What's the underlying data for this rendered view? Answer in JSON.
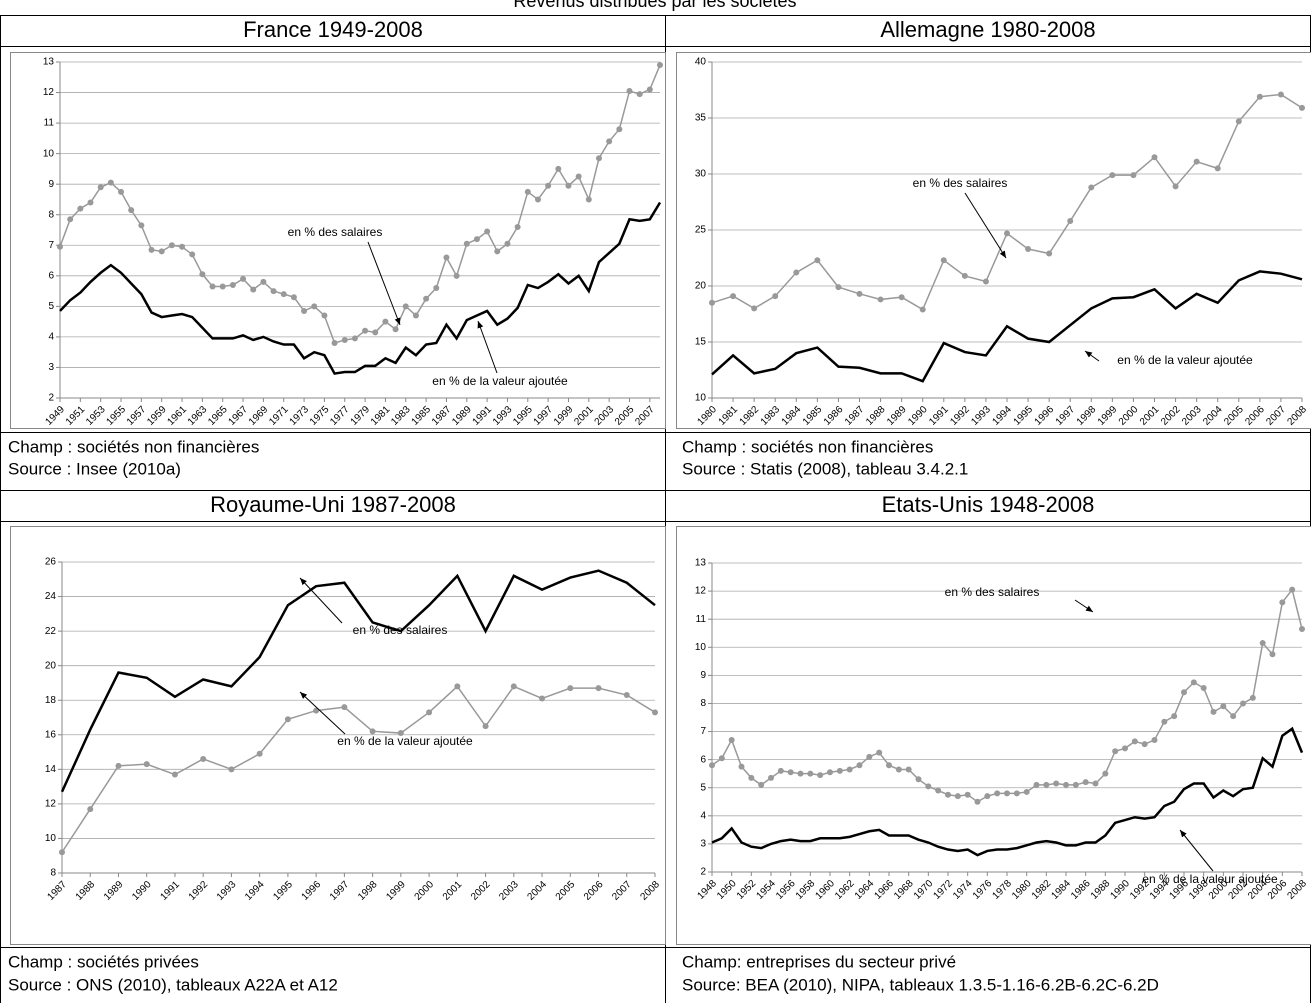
{
  "title": "Revenus distribués par les sociétés",
  "chart_data": [
    {
      "type": "line",
      "title": "France 1949-2008",
      "x": [
        1949,
        1950,
        1951,
        1952,
        1953,
        1954,
        1955,
        1956,
        1957,
        1958,
        1959,
        1960,
        1961,
        1962,
        1963,
        1964,
        1965,
        1966,
        1967,
        1968,
        1969,
        1970,
        1971,
        1972,
        1973,
        1974,
        1975,
        1976,
        1977,
        1978,
        1979,
        1980,
        1981,
        1982,
        1983,
        1984,
        1985,
        1986,
        1987,
        1988,
        1989,
        1990,
        1991,
        1992,
        1993,
        1994,
        1995,
        1996,
        1997,
        1998,
        1999,
        2000,
        2001,
        2002,
        2003,
        2004,
        2005,
        2006,
        2007,
        2008
      ],
      "xlim": [
        1949,
        2008
      ],
      "xticks": [
        1949,
        1951,
        1953,
        1955,
        1957,
        1959,
        1961,
        1963,
        1965,
        1967,
        1969,
        1971,
        1973,
        1975,
        1977,
        1979,
        1981,
        1983,
        1985,
        1987,
        1989,
        1991,
        1993,
        1995,
        1997,
        1999,
        2001,
        2003,
        2005,
        2007
      ],
      "ylim": [
        2,
        13
      ],
      "yticks": [
        2,
        3,
        4,
        5,
        6,
        7,
        8,
        9,
        10,
        11,
        12,
        13
      ],
      "grid": true,
      "series": [
        {
          "name": "en % des salaires",
          "color": "#999999",
          "marker": true,
          "values": [
            6.95,
            7.85,
            8.2,
            8.4,
            8.9,
            9.05,
            8.75,
            8.15,
            7.65,
            6.85,
            6.8,
            7.0,
            6.95,
            6.7,
            6.05,
            5.65,
            5.65,
            5.7,
            5.9,
            5.55,
            5.8,
            5.5,
            5.4,
            5.3,
            4.85,
            5.0,
            4.7,
            3.8,
            3.9,
            3.95,
            4.2,
            4.15,
            4.5,
            4.25,
            5.0,
            4.7,
            5.25,
            5.6,
            6.6,
            6.0,
            7.05,
            7.2,
            7.45,
            6.8,
            7.05,
            7.6,
            8.75,
            8.5,
            8.95,
            9.5,
            8.95,
            9.25,
            8.5,
            9.85,
            10.4,
            10.8,
            12.05,
            11.95,
            12.1,
            12.9
          ]
        },
        {
          "name": "en % de la valeur ajoutée",
          "color": "#000000",
          "marker": false,
          "values": [
            4.85,
            5.2,
            5.45,
            5.8,
            6.1,
            6.35,
            6.1,
            5.75,
            5.4,
            4.8,
            4.65,
            4.7,
            4.75,
            4.65,
            4.3,
            3.95,
            3.95,
            3.95,
            4.05,
            3.9,
            4.0,
            3.85,
            3.75,
            3.75,
            3.3,
            3.5,
            3.4,
            2.8,
            2.85,
            2.85,
            3.05,
            3.05,
            3.3,
            3.15,
            3.65,
            3.4,
            3.75,
            3.8,
            4.4,
            3.95,
            4.55,
            4.7,
            4.85,
            4.4,
            4.6,
            4.95,
            5.7,
            5.6,
            5.8,
            6.05,
            5.75,
            6.0,
            5.5,
            6.45,
            6.75,
            7.05,
            7.85,
            7.8,
            7.85,
            8.4
          ]
        }
      ],
      "annotations": [
        "en % des salaires",
        "en % de la valeur ajoutée"
      ],
      "notes": [
        "Champ : sociétés non financières",
        "Source : Insee (2010a)"
      ]
    },
    {
      "type": "line",
      "title": "Allemagne 1980-2008",
      "x": [
        1980,
        1981,
        1982,
        1983,
        1984,
        1985,
        1986,
        1987,
        1988,
        1989,
        1990,
        1991,
        1992,
        1993,
        1994,
        1995,
        1996,
        1997,
        1998,
        1999,
        2000,
        2001,
        2002,
        2003,
        2004,
        2005,
        2006,
        2007,
        2008
      ],
      "xlim": [
        1980,
        2008
      ],
      "xticks": [
        1980,
        1981,
        1982,
        1983,
        1984,
        1985,
        1986,
        1987,
        1988,
        1989,
        1990,
        1991,
        1992,
        1993,
        1994,
        1995,
        1996,
        1997,
        1998,
        1999,
        2000,
        2001,
        2002,
        2003,
        2004,
        2005,
        2006,
        2007,
        2008
      ],
      "ylim": [
        10,
        40
      ],
      "yticks": [
        10,
        15,
        20,
        25,
        30,
        35,
        40
      ],
      "grid": true,
      "series": [
        {
          "name": "en % des salaires",
          "color": "#999999",
          "marker": true,
          "values": [
            18.5,
            19.1,
            18.0,
            19.1,
            21.2,
            22.3,
            19.9,
            19.3,
            18.8,
            19.0,
            17.9,
            22.3,
            20.9,
            20.4,
            24.7,
            23.3,
            22.9,
            25.8,
            28.8,
            29.9,
            29.9,
            31.5,
            28.9,
            31.1,
            30.5,
            34.7,
            36.9,
            37.1,
            35.9
          ]
        },
        {
          "name": "en % de la valeur ajoutée",
          "color": "#000000",
          "marker": false,
          "values": [
            12.1,
            13.8,
            12.2,
            12.6,
            14.0,
            14.5,
            12.8,
            12.7,
            12.2,
            12.2,
            11.5,
            14.9,
            14.1,
            13.8,
            16.4,
            15.3,
            15.0,
            16.5,
            18.0,
            18.9,
            19.0,
            19.7,
            18.0,
            19.3,
            18.5,
            20.5,
            21.3,
            21.1,
            20.6
          ]
        }
      ],
      "annotations": [
        "en % des salaires",
        "en % de la valeur ajoutée"
      ],
      "notes": [
        "Champ : sociétés non financières",
        "Source : Statis (2008), tableau 3.4.2.1"
      ]
    },
    {
      "type": "line",
      "title": "Royaume-Uni 1987-2008",
      "x": [
        1987,
        1988,
        1989,
        1990,
        1991,
        1992,
        1993,
        1994,
        1995,
        1996,
        1997,
        1998,
        1999,
        2000,
        2001,
        2002,
        2003,
        2004,
        2005,
        2006,
        2007,
        2008
      ],
      "xlim": [
        1987,
        2008
      ],
      "xticks": [
        1987,
        1988,
        1989,
        1990,
        1991,
        1992,
        1993,
        1994,
        1995,
        1996,
        1997,
        1998,
        1999,
        2000,
        2001,
        2002,
        2003,
        2004,
        2005,
        2006,
        2007,
        2008
      ],
      "ylim": [
        8,
        26
      ],
      "yticks": [
        8,
        10,
        12,
        14,
        16,
        18,
        20,
        22,
        24,
        26
      ],
      "grid": true,
      "series": [
        {
          "name": "en % des salaires",
          "color": "#000000",
          "marker": false,
          "values": [
            12.7,
            16.3,
            19.6,
            19.3,
            18.2,
            19.2,
            18.8,
            20.5,
            23.5,
            24.6,
            24.8,
            22.5,
            22.0,
            23.5,
            25.2,
            22.0,
            25.2,
            24.4,
            25.1,
            25.5,
            24.8,
            23.5
          ]
        },
        {
          "name": "en % de la valeur ajoutée",
          "color": "#999999",
          "marker": true,
          "values": [
            9.2,
            11.7,
            14.2,
            14.3,
            13.7,
            14.6,
            14.0,
            14.9,
            16.9,
            17.4,
            17.6,
            16.2,
            16.1,
            17.3,
            18.8,
            16.5,
            18.8,
            18.1,
            18.7,
            18.7,
            18.3,
            17.3
          ]
        }
      ],
      "annotations": [
        "en % des salaires",
        "en % de la valeur ajoutée"
      ],
      "notes": [
        "Champ : sociétés privées",
        "Source : ONS (2010), tableaux A22A et A12"
      ]
    },
    {
      "type": "line",
      "title": "Etats-Unis 1948-2008",
      "x": [
        1948,
        1949,
        1950,
        1951,
        1952,
        1953,
        1954,
        1955,
        1956,
        1957,
        1958,
        1959,
        1960,
        1961,
        1962,
        1963,
        1964,
        1965,
        1966,
        1967,
        1968,
        1969,
        1970,
        1971,
        1972,
        1973,
        1974,
        1975,
        1976,
        1977,
        1978,
        1979,
        1980,
        1981,
        1982,
        1983,
        1984,
        1985,
        1986,
        1987,
        1988,
        1989,
        1990,
        1991,
        1992,
        1993,
        1994,
        1995,
        1996,
        1997,
        1998,
        1999,
        2000,
        2001,
        2002,
        2003,
        2004,
        2005,
        2006,
        2007,
        2008
      ],
      "xlim": [
        1948,
        2008
      ],
      "xticks": [
        1948,
        1950,
        1952,
        1954,
        1956,
        1958,
        1960,
        1962,
        1964,
        1966,
        1968,
        1970,
        1972,
        1974,
        1976,
        1978,
        1980,
        1982,
        1984,
        1986,
        1988,
        1990,
        1992,
        1994,
        1996,
        1998,
        2000,
        2002,
        2004,
        2006,
        2008
      ],
      "ylim": [
        2,
        13
      ],
      "yticks": [
        2,
        3,
        4,
        5,
        6,
        7,
        8,
        9,
        10,
        11,
        12,
        13
      ],
      "grid": true,
      "series": [
        {
          "name": "en % des salaires",
          "color": "#999999",
          "marker": true,
          "values": [
            5.8,
            6.05,
            6.7,
            5.75,
            5.35,
            5.1,
            5.35,
            5.6,
            5.55,
            5.5,
            5.5,
            5.45,
            5.55,
            5.6,
            5.65,
            5.8,
            6.1,
            6.25,
            5.8,
            5.65,
            5.65,
            5.3,
            5.05,
            4.9,
            4.75,
            4.7,
            4.75,
            4.5,
            4.7,
            4.8,
            4.8,
            4.8,
            4.85,
            5.1,
            5.1,
            5.15,
            5.1,
            5.1,
            5.2,
            5.15,
            5.5,
            6.3,
            6.4,
            6.65,
            6.55,
            6.7,
            7.35,
            7.55,
            8.4,
            8.75,
            8.55,
            7.7,
            7.9,
            7.55,
            8.0,
            8.2,
            10.15,
            9.75,
            11.6,
            12.05,
            10.65
          ]
        },
        {
          "name": "en % de la valeur ajoutée",
          "color": "#000000",
          "marker": false,
          "values": [
            3.05,
            3.2,
            3.55,
            3.05,
            2.9,
            2.85,
            3.0,
            3.1,
            3.15,
            3.1,
            3.1,
            3.2,
            3.2,
            3.2,
            3.25,
            3.35,
            3.45,
            3.5,
            3.3,
            3.3,
            3.3,
            3.15,
            3.05,
            2.9,
            2.8,
            2.75,
            2.8,
            2.6,
            2.75,
            2.8,
            2.8,
            2.85,
            2.95,
            3.05,
            3.1,
            3.05,
            2.95,
            2.95,
            3.05,
            3.05,
            3.3,
            3.75,
            3.85,
            3.95,
            3.9,
            3.95,
            4.35,
            4.5,
            4.95,
            5.15,
            5.15,
            4.65,
            4.9,
            4.7,
            4.95,
            5.0,
            6.05,
            5.75,
            6.85,
            7.1,
            6.25
          ]
        }
      ],
      "annotations": [
        "en % des salaires",
        "en % de la valeur ajoutée"
      ],
      "notes": [
        "Champ: entreprises du secteur privé",
        "Source: BEA (2010), NIPA, tableaux 1.3.5-1.16-6.2B-6.2C-6.2D"
      ]
    }
  ]
}
